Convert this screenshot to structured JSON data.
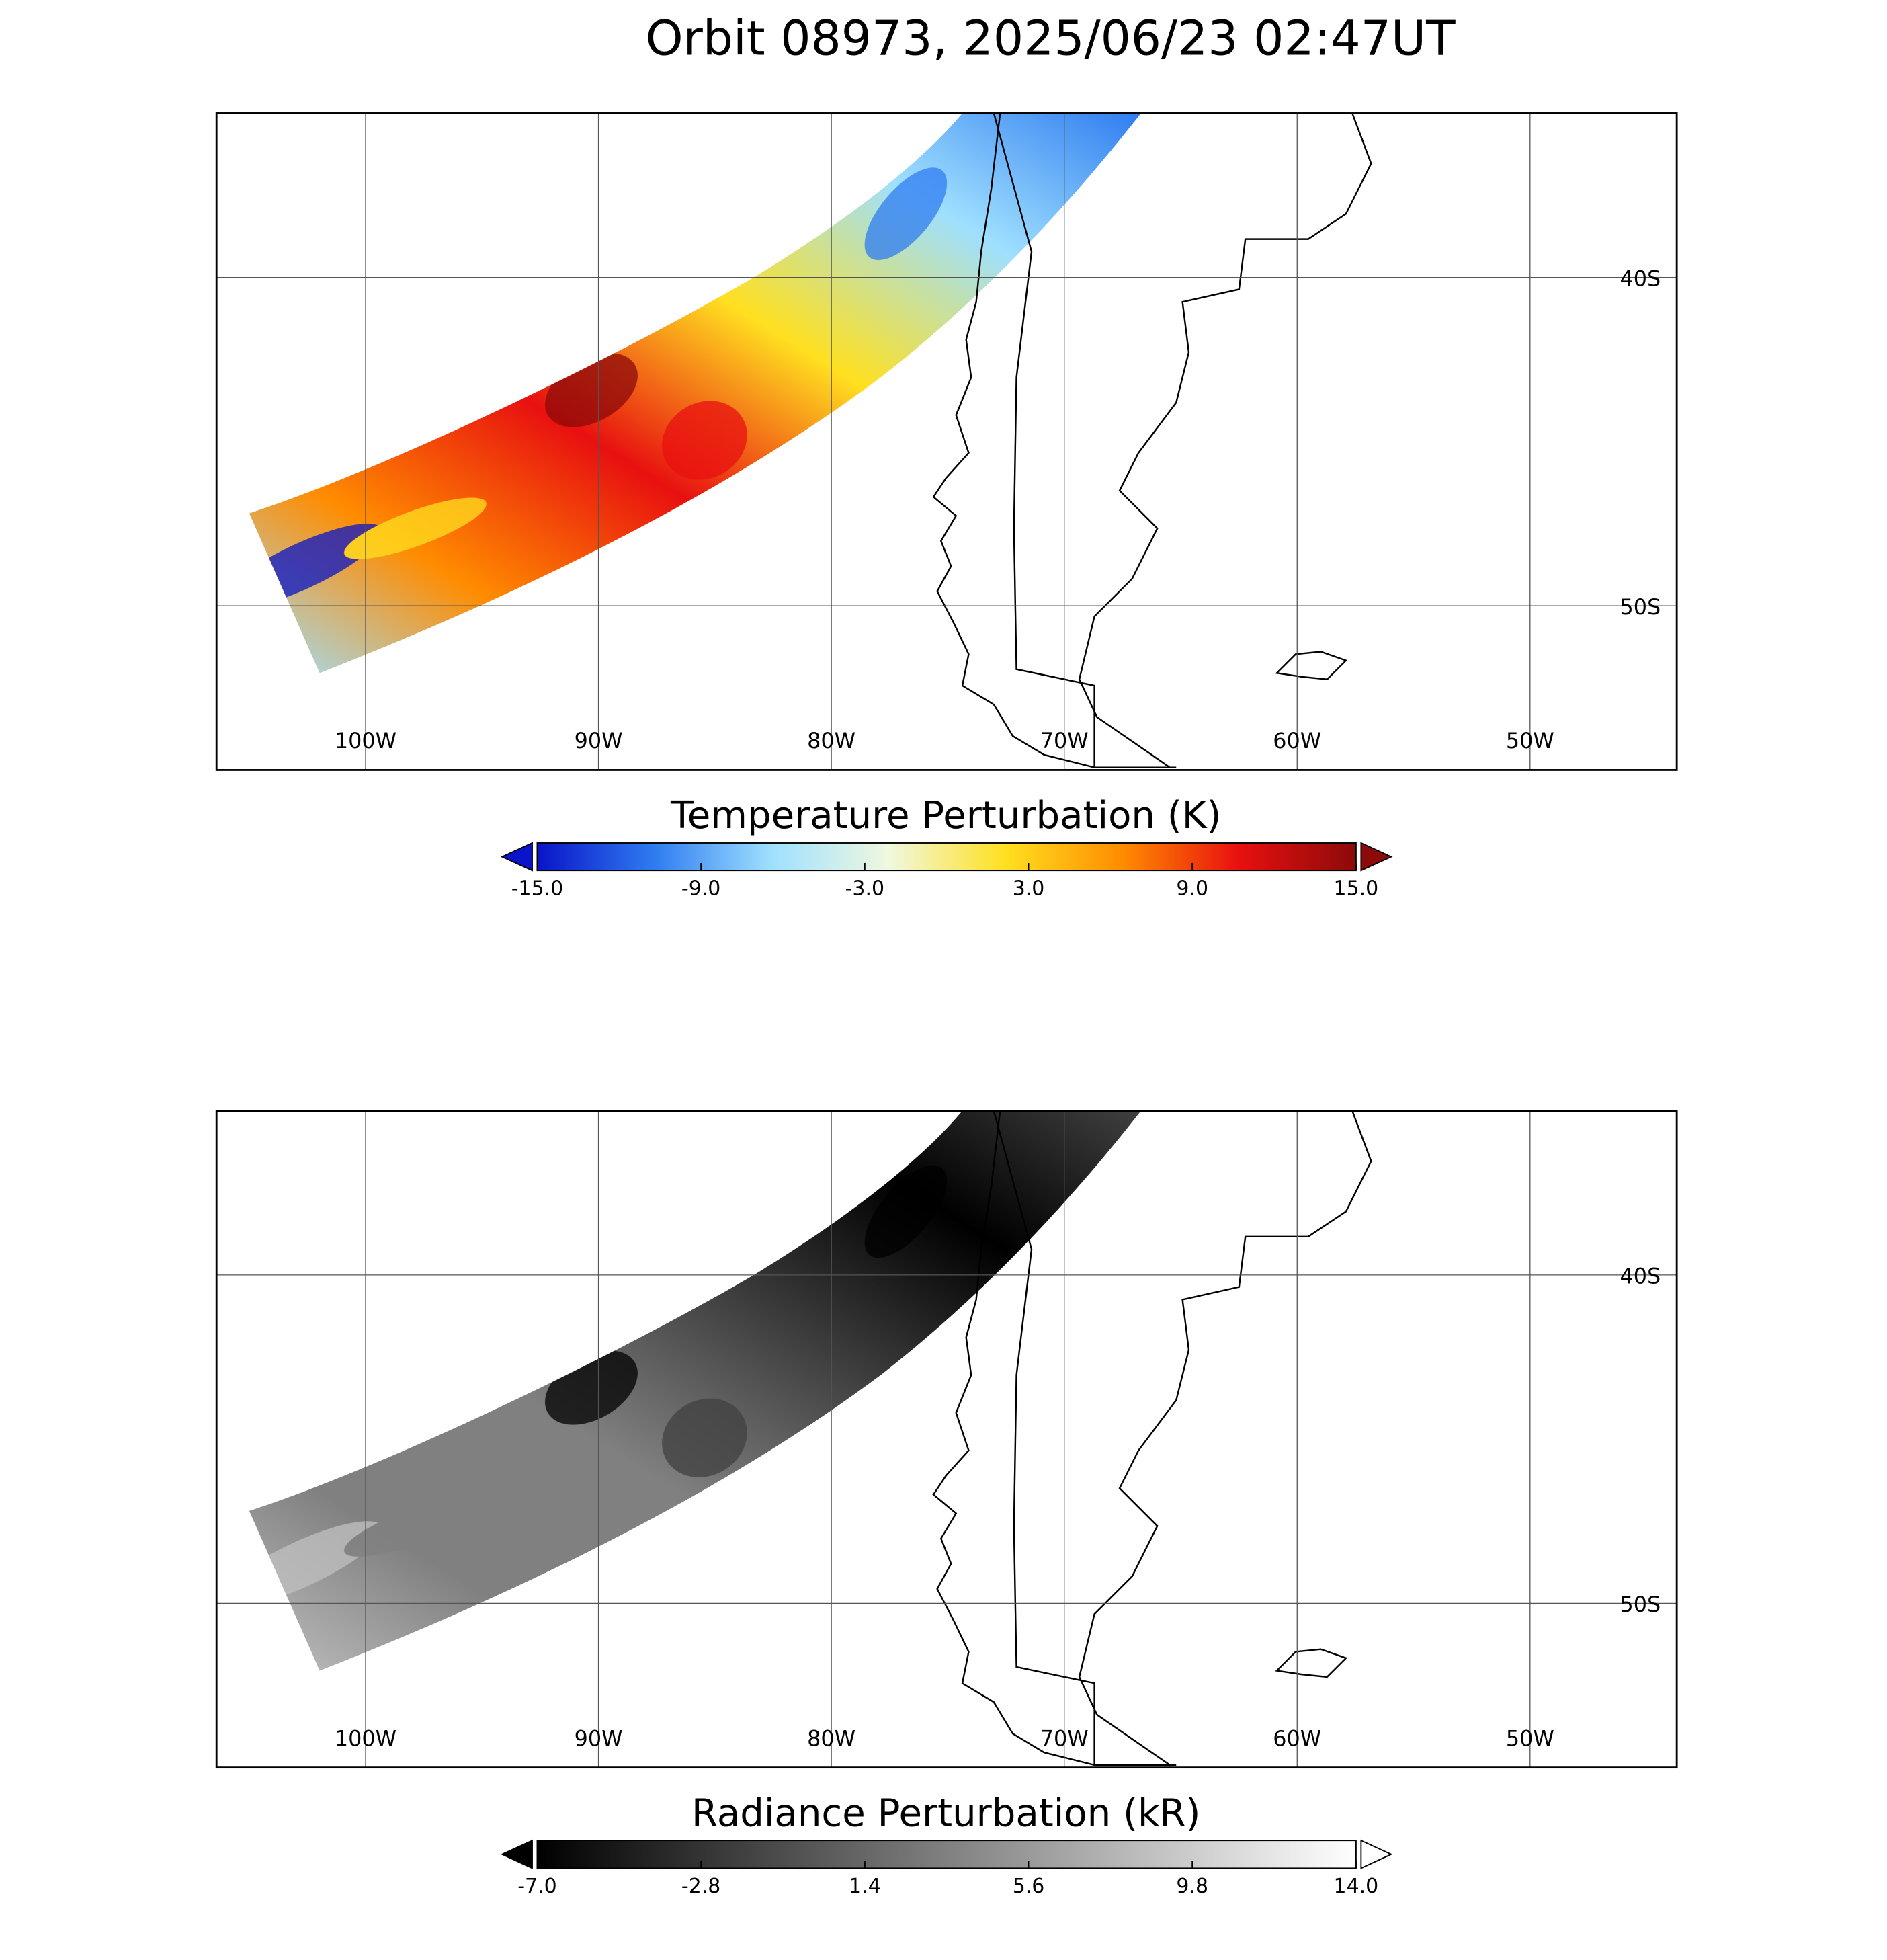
{
  "title": "Orbit 08973, 2025/06/23 02:47UT",
  "panels": [
    {
      "xlim": [
        -106.4,
        -43.7
      ],
      "ylim": [
        -55,
        -35
      ],
      "lon_ticks": [
        {
          "value": -100,
          "label": "100W"
        },
        {
          "value": -90,
          "label": "90W"
        },
        {
          "value": -80,
          "label": "80W"
        },
        {
          "value": -70,
          "label": "70W"
        },
        {
          "value": -60,
          "label": "60W"
        },
        {
          "value": -50,
          "label": "50W"
        }
      ],
      "lat_ticks": [
        {
          "value": -40,
          "label": "40S"
        },
        {
          "value": -50,
          "label": "50S"
        }
      ],
      "colorbar": {
        "title": "Temperature Perturbation (K)",
        "range": [
          -15,
          15
        ],
        "colors": [
          "#0a14c8",
          "#2f7cf0",
          "#9fe0ff",
          "#f0f8e0",
          "#ffe020",
          "#ff8c00",
          "#e81010",
          "#8c0a0a"
        ],
        "ticks": [
          {
            "value": -15,
            "label": "-15.0"
          },
          {
            "value": -9,
            "label": "-9.0"
          },
          {
            "value": -3,
            "label": "-3.0"
          },
          {
            "value": 3,
            "label": "3.0"
          },
          {
            "value": 9,
            "label": "9.0"
          },
          {
            "value": 15,
            "label": "15.0"
          }
        ]
      }
    },
    {
      "xlim": [
        -106.4,
        -43.7
      ],
      "ylim": [
        -55,
        -35
      ],
      "lon_ticks": [
        {
          "value": -100,
          "label": "100W"
        },
        {
          "value": -90,
          "label": "90W"
        },
        {
          "value": -80,
          "label": "80W"
        },
        {
          "value": -70,
          "label": "70W"
        },
        {
          "value": -60,
          "label": "60W"
        },
        {
          "value": -50,
          "label": "50W"
        }
      ],
      "lat_ticks": [
        {
          "value": -40,
          "label": "40S"
        },
        {
          "value": -50,
          "label": "50S"
        }
      ],
      "colorbar": {
        "title": "Radiance Perturbation (kR)",
        "range": [
          -7,
          14
        ],
        "colors": [
          "#000000",
          "#404040",
          "#808080",
          "#c0c0c0",
          "#ffffff"
        ],
        "ticks": [
          {
            "value": -7,
            "label": "-7.0"
          },
          {
            "value": -2.8,
            "label": "-2.8"
          },
          {
            "value": 1.4,
            "label": "1.4"
          },
          {
            "value": 5.6,
            "label": "5.6"
          },
          {
            "value": 9.8,
            "label": "9.8"
          },
          {
            "value": 14,
            "label": "14.0"
          }
        ]
      }
    }
  ]
}
